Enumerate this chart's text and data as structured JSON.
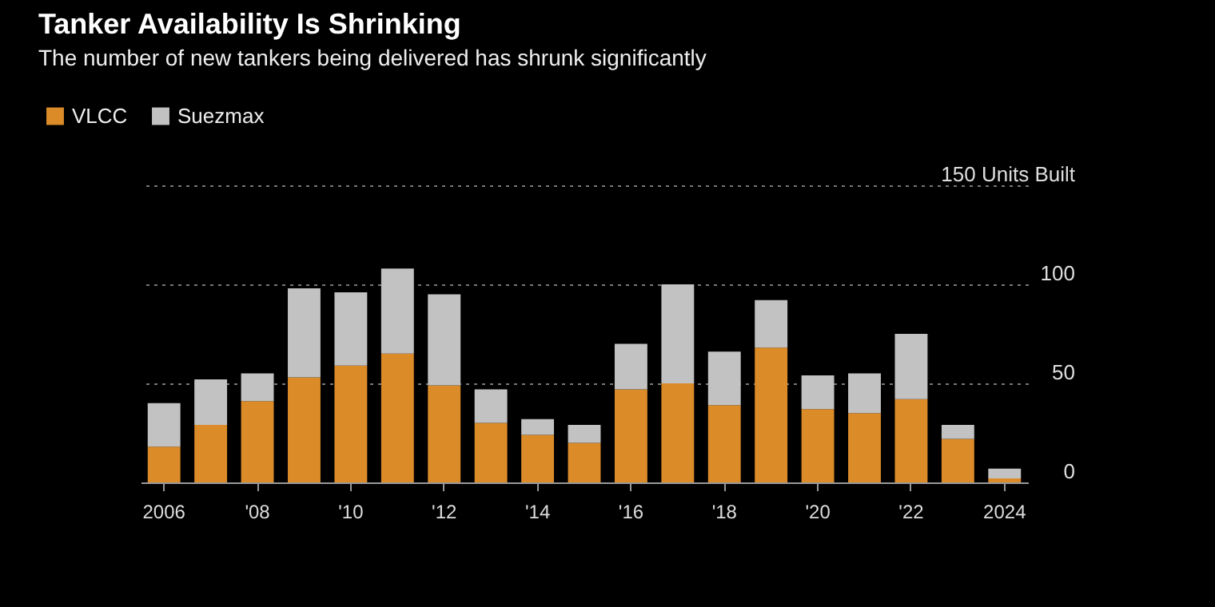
{
  "chart_data": {
    "type": "bar",
    "title": "Tanker Availability Is Shrinking",
    "subtitle": "The number of new tankers being delivered has shrunk significantly",
    "categories": [
      "2006",
      null,
      "'08",
      null,
      "'10",
      null,
      "'12",
      null,
      "'14",
      null,
      "'16",
      null,
      "'18",
      null,
      "'20",
      null,
      "'22",
      null,
      "2024"
    ],
    "stacked": true,
    "series": [
      {
        "name": "VLCC",
        "color": "#dc8b29",
        "values": [
          18,
          29,
          41,
          53,
          59,
          65,
          49,
          30,
          24,
          20,
          47,
          50,
          39,
          68,
          37,
          35,
          42,
          22,
          2
        ]
      },
      {
        "name": "Suezmax",
        "color": "#c2c2c2",
        "values": [
          22,
          23,
          14,
          45,
          37,
          43,
          46,
          17,
          8,
          9,
          23,
          50,
          27,
          24,
          17,
          20,
          33,
          7,
          5
        ]
      }
    ],
    "ylim": [
      0,
      150
    ],
    "yticks": [
      0,
      50,
      100,
      {
        "value": 150,
        "label": "150 Units Built"
      }
    ],
    "grid": "y",
    "legend": "top left"
  }
}
